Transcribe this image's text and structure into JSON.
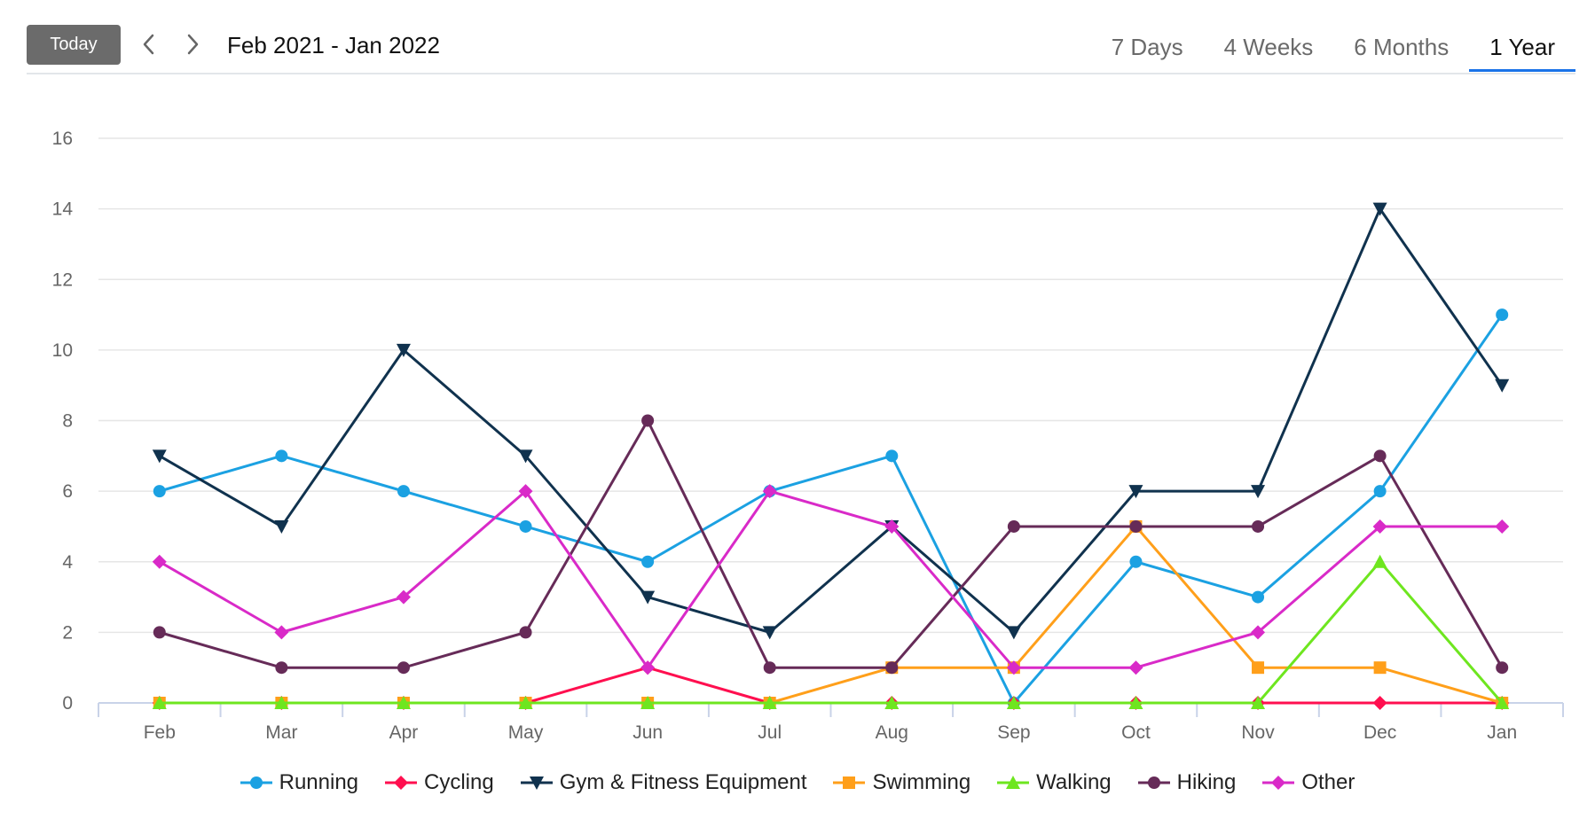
{
  "header": {
    "today_label": "Today",
    "range_label": "Feb 2021 - Jan 2022",
    "prev_icon": "chevron-left-icon",
    "next_icon": "chevron-right-icon",
    "tabs": [
      {
        "label": "7 Days",
        "active": false
      },
      {
        "label": "4 Weeks",
        "active": false
      },
      {
        "label": "6 Months",
        "active": false
      },
      {
        "label": "1 Year",
        "active": true
      }
    ]
  },
  "colors": {
    "grid": "#e6e6e6",
    "axis": "#c9d3e8",
    "text": "#666666",
    "active_tab": "#1a73e8"
  },
  "chart_data": {
    "type": "line",
    "title": "",
    "xlabel": "",
    "ylabel": "",
    "ylim": [
      0,
      16
    ],
    "yticks": [
      0,
      2,
      4,
      6,
      8,
      10,
      12,
      14,
      16
    ],
    "grid": true,
    "legend_position": "bottom-center",
    "categories": [
      "Feb",
      "Mar",
      "Apr",
      "May",
      "Jun",
      "Jul",
      "Aug",
      "Sep",
      "Oct",
      "Nov",
      "Dec",
      "Jan"
    ],
    "series": [
      {
        "name": "Running",
        "color": "#1ba1e2",
        "marker": "circle",
        "values": [
          6,
          7,
          6,
          5,
          4,
          6,
          7,
          0,
          4,
          3,
          6,
          11
        ]
      },
      {
        "name": "Cycling",
        "color": "#ff0f4f",
        "marker": "diamond",
        "values": [
          0,
          0,
          0,
          0,
          1,
          0,
          0,
          0,
          0,
          0,
          0,
          0
        ]
      },
      {
        "name": "Gym & Fitness Equipment",
        "color": "#10324e",
        "marker": "triangle-down",
        "values": [
          7,
          5,
          10,
          7,
          3,
          2,
          5,
          2,
          6,
          6,
          14,
          9
        ]
      },
      {
        "name": "Swimming",
        "color": "#ff9f1a",
        "marker": "square",
        "values": [
          0,
          0,
          0,
          0,
          0,
          0,
          1,
          1,
          5,
          1,
          1,
          0
        ]
      },
      {
        "name": "Walking",
        "color": "#6ee61f",
        "marker": "triangle",
        "values": [
          0,
          0,
          0,
          0,
          0,
          0,
          0,
          0,
          0,
          0,
          4,
          0
        ]
      },
      {
        "name": "Hiking",
        "color": "#662b58",
        "marker": "circle",
        "values": [
          2,
          1,
          1,
          2,
          8,
          1,
          1,
          5,
          5,
          5,
          7,
          1
        ]
      },
      {
        "name": "Other",
        "color": "#d92ac8",
        "marker": "diamond",
        "values": [
          4,
          2,
          3,
          6,
          1,
          6,
          5,
          1,
          1,
          2,
          5,
          5
        ]
      }
    ]
  }
}
